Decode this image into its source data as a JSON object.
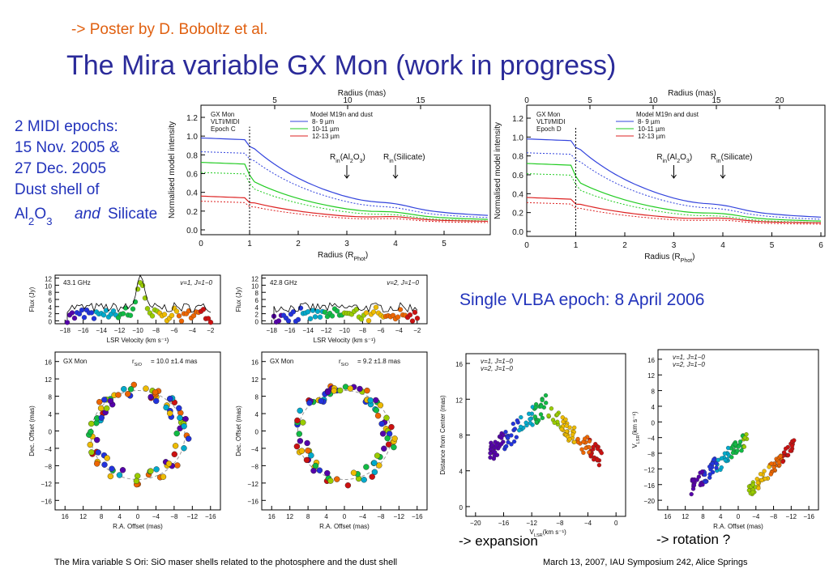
{
  "header": {
    "link": "-> Poster by D. Boboltz et al.",
    "title": "The Mira variable GX Mon (work in progress)"
  },
  "midi_text": {
    "lines": [
      "2 MIDI epochs:",
      "15 Nov. 2005 &",
      "27 Dec. 2005",
      "Dust shell of"
    ],
    "al": "Al",
    "two": "2",
    "o": "O",
    "three": "3",
    "and": "and",
    "silicate": "Silicate"
  },
  "vlba_text": "Single VLBA epoch: 8 April 2006",
  "captions": [
    "-> expansion",
    "-> rotation ?"
  ],
  "footer": {
    "left": "The Mira variable S Ori: SiO maser shells related to the photosphere and the dust shell",
    "right": "March 13, 2007, IAU Symposium 242, Alice Springs"
  },
  "midi_annot": {
    "r": "R",
    "in": "in",
    "al": "(Al",
    "two": "2",
    "o": "O",
    "three": "3",
    "close": ")",
    "si": "(Silicate)"
  },
  "midi": [
    {
      "top_label": "Radius (mas)",
      "top_ticks": [
        "5",
        "10",
        "15"
      ],
      "ylabel": "Normalised model intensity",
      "yticks": [
        "0.0",
        "0.2",
        "0.4",
        "0.6",
        "0.8",
        "1.0",
        "1.2"
      ],
      "xticks": [
        "0",
        "1",
        "2",
        "3",
        "4",
        "5"
      ],
      "xlabel": "Radius (R",
      "xlabel_sub": "Phot",
      "xlabel_end": ")",
      "info": [
        "GX Mon",
        "VLTI/MIDI",
        "Epoch C"
      ],
      "legend_title": "Model M19n and dust",
      "legend": [
        "8- 9 µm",
        "10-11 µm",
        "12-13 µm"
      ]
    },
    {
      "top_label": "Radius (mas)",
      "top_ticks": [
        "0",
        "5",
        "10",
        "15",
        "20"
      ],
      "ylabel": "Normalised model intensity",
      "yticks": [
        "0.0",
        "0.2",
        "0.4",
        "0.6",
        "0.8",
        "1.0",
        "1.2"
      ],
      "xticks": [
        "0",
        "1",
        "2",
        "3",
        "4",
        "5",
        "6"
      ],
      "xlabel": "Radius (R",
      "xlabel_sub": "Phot",
      "xlabel_end": ")",
      "info": [
        "GX Mon",
        "VLTI/MIDI",
        "Epoch D"
      ],
      "legend_title": "Model M19n and dust",
      "legend": [
        "8- 9 µm",
        "10-11 µm",
        "12-13 µm"
      ]
    }
  ],
  "vlba": [
    {
      "yticks": [
        "12",
        "10",
        "8",
        "6",
        "4",
        "2",
        "0"
      ],
      "xticks": [
        "−18",
        "−16",
        "−14",
        "−12",
        "−10",
        "−8",
        "−6",
        "−4",
        "−2"
      ],
      "ylabel": "Flux (Jy)",
      "xlabel": "LSR Velocity (km s⁻¹)",
      "freq": "43.1 GHz",
      "line": "v=1, J=1−0"
    },
    {
      "yticks": [
        "12",
        "10",
        "8",
        "6",
        "4",
        "2",
        "0"
      ],
      "xticks": [
        "−18",
        "−16",
        "−14",
        "−12",
        "−10",
        "−8",
        "−6",
        "−4",
        "−2"
      ],
      "ylabel": "Flux (Jy)",
      "xlabel": "LSR Velocity (km s⁻¹)",
      "freq": "42.8 GHz",
      "line": "v=2, J=1−0"
    },
    {
      "yticks": [
        "16",
        "12",
        "8",
        "4",
        "0",
        "−4",
        "−8",
        "−12",
        "−16"
      ],
      "xticks": [
        "16",
        "12",
        "8",
        "4",
        "0",
        "−4",
        "−8",
        "−12",
        "−16"
      ],
      "ylabel": "Dec. Offset (mas)",
      "xlabel": "R.A. Offset (mas)",
      "name": "GX Mon",
      "r": "r",
      "sub": "SiO",
      "radius": "= 10.0 ±1.4 mas"
    },
    {
      "yticks": [
        "16",
        "12",
        "8",
        "4",
        "0",
        "−4",
        "−8",
        "−12",
        "−16"
      ],
      "xticks": [
        "16",
        "12",
        "8",
        "4",
        "0",
        "−4",
        "−8",
        "−12",
        "−16"
      ],
      "ylabel": "Dec. Offset (mas)",
      "xlabel": "R.A. Offset (mas)",
      "name": "GX Mon",
      "r": "r",
      "sub": "SiO",
      "radius": "= 9.2 ±1.8 mas"
    },
    {
      "yticks": [
        "16",
        "12",
        "8",
        "4",
        "0"
      ],
      "xticks": [
        "−20",
        "−16",
        "−12",
        "−8",
        "−4",
        "0"
      ],
      "ylabel": "Distance from Center (mas)",
      "xlabel": "V",
      "xsub": "LSR",
      "xend": "(km s⁻¹)",
      "legend": [
        "v=1, J=1−0",
        "v=2, J=1−0"
      ]
    },
    {
      "yticks": [
        "16",
        "12",
        "8",
        "4",
        "0",
        "−4",
        "−8",
        "−12",
        "−16",
        "−20"
      ],
      "xticks": [
        "16",
        "12",
        "8",
        "4",
        "0",
        "−4",
        "−8",
        "−12",
        "−16"
      ],
      "ylabel": "V",
      "ysub": "LSR",
      "yend": "(km s⁻¹)",
      "xlabel": "R.A. Offset (mas)",
      "legend": [
        "v=1, J=1−0",
        "v=2, J=1−0"
      ]
    }
  ]
}
